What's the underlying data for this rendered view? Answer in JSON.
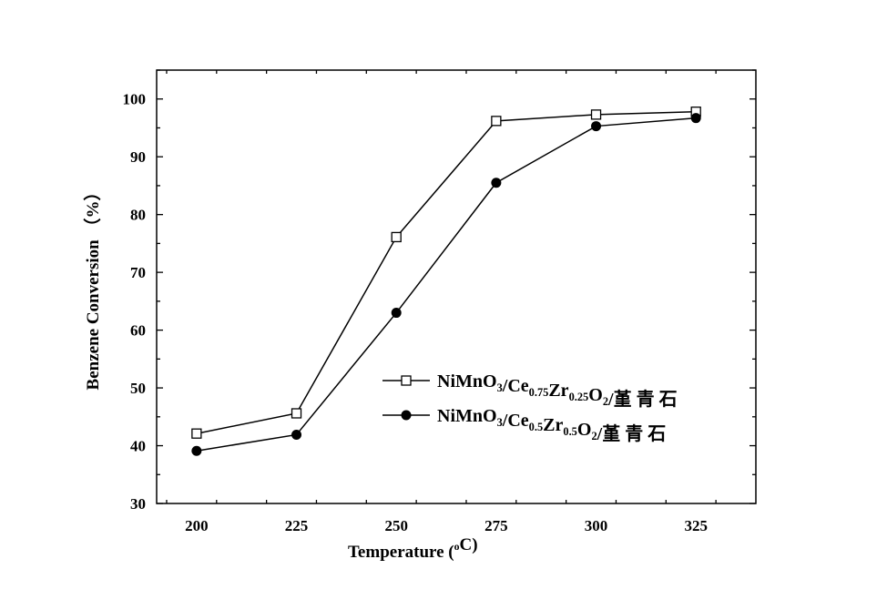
{
  "chart_data": {
    "type": "line",
    "title": "",
    "xlabel": "Temperature (oC)",
    "xlabel_parts": [
      [
        "Temperature (",
        ""
      ],
      [
        "o",
        "sup"
      ],
      [
        "C)",
        ""
      ]
    ],
    "ylabel": "Benzene Conversion （%）",
    "x": [
      200,
      225,
      250,
      275,
      300,
      325
    ],
    "xlim": [
      190,
      340
    ],
    "ylim": [
      30,
      105
    ],
    "xticks": [
      200,
      225,
      250,
      275,
      300,
      325
    ],
    "yticks": [
      30,
      40,
      50,
      60,
      70,
      80,
      90,
      100
    ],
    "grid": false,
    "legend_position": "center-right",
    "series": [
      {
        "name": "NiMnO3/Ce0.75Zr0.25O2/堇 青石",
        "marker": "open-square",
        "name_parts": [
          [
            "NiMnO",
            ""
          ],
          [
            "3",
            "sub"
          ],
          [
            "/Ce",
            ""
          ],
          [
            "0.75",
            "sub"
          ],
          [
            "Zr",
            ""
          ],
          [
            "0.25",
            "sub"
          ],
          [
            "O",
            ""
          ],
          [
            "2",
            "sub"
          ],
          [
            "/堇 青 石",
            ""
          ]
        ],
        "values": [
          42.1,
          45.6,
          76.1,
          96.2,
          97.3,
          97.8
        ]
      },
      {
        "name": "NiMnO3/Ce0.5Zr0.5O2/堇 青石",
        "marker": "filled-circle",
        "name_parts": [
          [
            "NiMnO",
            ""
          ],
          [
            "3",
            "sub"
          ],
          [
            "/Ce",
            ""
          ],
          [
            "0.5",
            "sub"
          ],
          [
            "Zr",
            ""
          ],
          [
            "0.5",
            "sub"
          ],
          [
            "O",
            ""
          ],
          [
            "2",
            "sub"
          ],
          [
            "/堇 青 石",
            ""
          ]
        ],
        "values": [
          39.1,
          41.9,
          63.0,
          85.5,
          95.3,
          96.7
        ]
      }
    ]
  }
}
